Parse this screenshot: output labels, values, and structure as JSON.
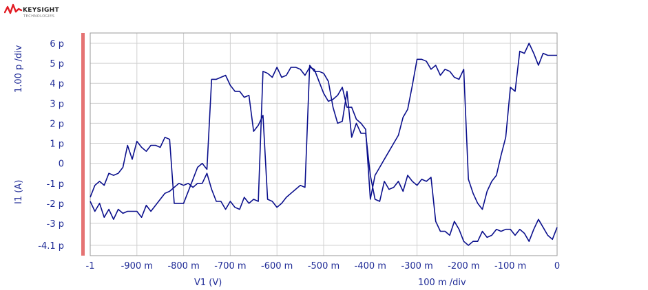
{
  "logo": {
    "brand": "KEYSIGHT",
    "sub": "TECHNOLOGIES"
  },
  "chart_data": {
    "type": "line",
    "xlabel": "V1 (V)",
    "ylabel": "I1 (A)",
    "x_div_label": "100 m /div",
    "y_div_label": "1.00 p /div",
    "xlim": [
      -1.0,
      0.0
    ],
    "ylim": [
      -4.1,
      6.0
    ],
    "grid": true,
    "x_tick_labels": [
      "-1",
      "-900 m",
      "-800 m",
      "-700 m",
      "-600 m",
      "-500 m",
      "-400 m",
      "-300 m",
      "-200 m",
      "-100 m",
      "0"
    ],
    "x_tick_values": [
      -1.0,
      -0.9,
      -0.8,
      -0.7,
      -0.6,
      -0.5,
      -0.4,
      -0.3,
      -0.2,
      -0.1,
      0.0
    ],
    "y_tick_labels": [
      "6 p",
      "5 p",
      "4 p",
      "3 p",
      "2 p",
      "1 p",
      "0",
      "-1 p",
      "-2 p",
      "-3 p",
      "-4.1 p"
    ],
    "y_tick_values": [
      6,
      5,
      4,
      3,
      2,
      1,
      0,
      -1,
      -2,
      -3,
      -4.1
    ],
    "series": [
      {
        "color": "#0a0f8c",
        "x": [
          -1.0,
          -0.99,
          -0.98,
          -0.97,
          -0.96,
          -0.95,
          -0.94,
          -0.93,
          -0.92,
          -0.91,
          -0.9,
          -0.89,
          -0.88,
          -0.87,
          -0.86,
          -0.85,
          -0.84,
          -0.83,
          -0.82,
          -0.81,
          -0.8,
          -0.79,
          -0.78,
          -0.77,
          -0.76,
          -0.75,
          -0.74,
          -0.73,
          -0.72,
          -0.71,
          -0.7,
          -0.69,
          -0.68,
          -0.67,
          -0.66,
          -0.65,
          -0.64,
          -0.63,
          -0.62,
          -0.61,
          -0.6,
          -0.59,
          -0.58,
          -0.57,
          -0.56,
          -0.55,
          -0.54,
          -0.53,
          -0.52,
          -0.51,
          -0.5,
          -0.49,
          -0.48,
          -0.47,
          -0.46,
          -0.45,
          -0.44,
          -0.43,
          -0.42,
          -0.41,
          -0.4,
          -0.39,
          -0.38,
          -0.37,
          -0.36,
          -0.35,
          -0.34,
          -0.33,
          -0.32,
          -0.31,
          -0.3,
          -0.29,
          -0.28,
          -0.27,
          -0.26,
          -0.25,
          -0.24,
          -0.23,
          -0.22,
          -0.21,
          -0.2,
          -0.19,
          -0.18,
          -0.17,
          -0.16,
          -0.15,
          -0.14,
          -0.13,
          -0.12,
          -0.11,
          -0.1,
          -0.09,
          -0.08,
          -0.07,
          -0.06,
          -0.05,
          -0.04,
          -0.03,
          -0.02,
          -0.01,
          0.0
        ],
        "y": [
          -1.7,
          -1.1,
          -0.9,
          -1.1,
          -0.5,
          -0.6,
          -0.5,
          -0.2,
          0.9,
          0.2,
          1.1,
          0.8,
          0.6,
          0.9,
          0.9,
          0.8,
          1.3,
          1.2,
          -2.0,
          -2.0,
          -2.0,
          -1.4,
          -0.8,
          -0.2,
          0.0,
          -0.3,
          4.2,
          4.2,
          4.3,
          4.4,
          3.9,
          3.6,
          3.6,
          3.3,
          3.4,
          1.6,
          1.9,
          2.4,
          -1.8,
          -1.9,
          -2.2,
          -2.0,
          -1.7,
          -1.5,
          -1.3,
          -1.1,
          -1.2,
          4.9,
          4.6,
          4.6,
          4.5,
          4.1,
          2.8,
          2.0,
          2.1,
          3.6,
          1.3,
          2.0,
          1.5,
          1.5,
          -0.6,
          -1.8,
          -1.9,
          -0.9,
          -1.3,
          -1.2,
          -0.9,
          -1.4,
          -0.6,
          -0.9,
          -1.1,
          -0.8,
          -0.9,
          -0.7,
          -2.9,
          -3.4,
          -3.4,
          -3.6,
          -2.9,
          -3.3,
          -3.9,
          -4.1,
          -3.9,
          -3.9,
          -3.4,
          -3.7,
          -3.6,
          -3.3,
          -3.4,
          -3.3,
          -3.3,
          -3.6,
          -3.3,
          -3.5,
          -3.9,
          -3.3,
          -2.8,
          -3.2,
          -3.6,
          -3.8,
          -3.2
        ]
      },
      {
        "color": "#0a0f8c",
        "x": [
          -1.0,
          -0.99,
          -0.98,
          -0.97,
          -0.96,
          -0.95,
          -0.94,
          -0.93,
          -0.92,
          -0.91,
          -0.9,
          -0.89,
          -0.88,
          -0.87,
          -0.86,
          -0.85,
          -0.84,
          -0.83,
          -0.82,
          -0.81,
          -0.8,
          -0.79,
          -0.78,
          -0.77,
          -0.76,
          -0.75,
          -0.74,
          -0.73,
          -0.72,
          -0.71,
          -0.7,
          -0.69,
          -0.68,
          -0.67,
          -0.66,
          -0.65,
          -0.64,
          -0.63,
          -0.62,
          -0.61,
          -0.6,
          -0.59,
          -0.58,
          -0.57,
          -0.56,
          -0.55,
          -0.54,
          -0.53,
          -0.52,
          -0.51,
          -0.5,
          -0.49,
          -0.48,
          -0.47,
          -0.46,
          -0.45,
          -0.44,
          -0.43,
          -0.42,
          -0.41,
          -0.4,
          -0.39,
          -0.38,
          -0.37,
          -0.36,
          -0.35,
          -0.34,
          -0.33,
          -0.32,
          -0.31,
          -0.3,
          -0.29,
          -0.28,
          -0.27,
          -0.26,
          -0.25,
          -0.24,
          -0.23,
          -0.22,
          -0.21,
          -0.2,
          -0.19,
          -0.18,
          -0.17,
          -0.16,
          -0.15,
          -0.14,
          -0.13,
          -0.12,
          -0.11,
          -0.1,
          -0.09,
          -0.08,
          -0.07,
          -0.06,
          -0.05,
          -0.04,
          -0.03,
          -0.02,
          -0.01,
          0.0
        ],
        "y": [
          -1.9,
          -2.4,
          -2.0,
          -2.7,
          -2.3,
          -2.8,
          -2.3,
          -2.5,
          -2.4,
          -2.4,
          -2.4,
          -2.7,
          -2.1,
          -2.4,
          -2.1,
          -1.8,
          -1.5,
          -1.4,
          -1.2,
          -1.0,
          -1.1,
          -1.0,
          -1.2,
          -1.0,
          -1.0,
          -0.5,
          -1.3,
          -1.9,
          -1.9,
          -2.3,
          -1.9,
          -2.2,
          -2.3,
          -1.7,
          -2.0,
          -1.8,
          -1.9,
          4.6,
          4.5,
          4.3,
          4.8,
          4.3,
          4.4,
          4.8,
          4.8,
          4.7,
          4.4,
          4.8,
          4.7,
          4.1,
          3.5,
          3.1,
          3.2,
          3.4,
          3.8,
          2.8,
          2.8,
          2.2,
          2.0,
          1.7,
          -1.8,
          -0.6,
          -0.2,
          0.2,
          0.6,
          1.0,
          1.4,
          2.3,
          2.7,
          3.9,
          5.2,
          5.2,
          5.1,
          4.7,
          4.9,
          4.4,
          4.7,
          4.6,
          4.3,
          4.2,
          4.7,
          -0.8,
          -1.5,
          -2.0,
          -2.3,
          -1.4,
          -0.9,
          -0.6,
          0.4,
          1.3,
          3.8,
          3.6,
          5.6,
          5.5,
          6.0,
          5.5,
          4.9,
          5.5,
          5.4,
          5.4,
          5.4
        ]
      }
    ]
  }
}
